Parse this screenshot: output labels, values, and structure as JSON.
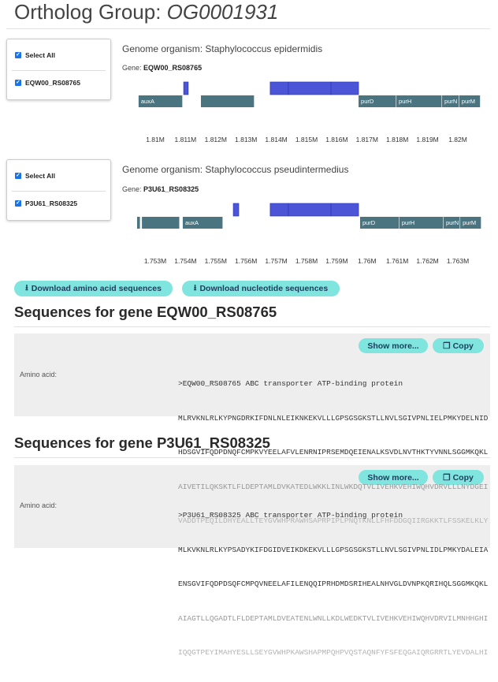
{
  "page": {
    "title_prefix": "Ortholog Group: ",
    "title_id": "OG0001931"
  },
  "colors": {
    "gene_track": "#4a7580",
    "target_gene": "#4b55d6",
    "button": "#7fe5de"
  },
  "genomes": [
    {
      "select_all": "Select All",
      "gene_checkbox": "EQW00_RS08765",
      "organism": "Genome organism: Staphylococcus epidermidis",
      "gene_label": "Gene: ",
      "gene_id": "EQW00_RS08765",
      "tick_start_kb": 1810,
      "ticks": [
        "1.81M",
        "1.811M",
        "1.812M",
        "1.813M",
        "1.814M",
        "1.815M",
        "1.816M",
        "1.817M",
        "1.818M",
        "1.819M",
        "1.82M"
      ],
      "target_features": [
        [
          1810.94,
          1811.09
        ],
        [
          1813.8,
          1814.4
        ],
        [
          1814.4,
          1815.81
        ],
        [
          1815.81,
          1816.72
        ]
      ],
      "features": [
        {
          "label": "auxA",
          "start": 1809.45,
          "end": 1810.91
        },
        {
          "label": "",
          "start": 1811.51,
          "end": 1813.28
        },
        {
          "label": "purD",
          "start": 1816.72,
          "end": 1817.97
        },
        {
          "label": "purH",
          "start": 1817.97,
          "end": 1819.48
        },
        {
          "label": "purN",
          "start": 1819.48,
          "end": 1820.05
        },
        {
          "label": "purM",
          "start": 1820.05,
          "end": 1820.75
        }
      ]
    },
    {
      "select_all": "Select All",
      "gene_checkbox": "P3U61_RS08325",
      "organism": "Genome organism: Staphylococcus pseudintermedius",
      "gene_label": "Gene: ",
      "gene_id": "P3U61_RS08325",
      "tick_start_kb": 1753,
      "ticks": [
        "1.753M",
        "1.754M",
        "1.755M",
        "1.756M",
        "1.757M",
        "1.758M",
        "1.759M",
        "1.76M",
        "1.761M",
        "1.762M",
        "1.763M"
      ],
      "target_features": [
        [
          1755.58,
          1755.76
        ],
        [
          1756.8,
          1757.4
        ],
        [
          1757.4,
          1758.81
        ],
        [
          1758.81,
          1759.72
        ]
      ],
      "features": [
        {
          "label": "",
          "start": 1752.4,
          "end": 1752.51
        },
        {
          "label": "",
          "start": 1752.56,
          "end": 1753.81
        },
        {
          "label": "auxA",
          "start": 1753.91,
          "end": 1755.24
        },
        {
          "label": "purD",
          "start": 1759.77,
          "end": 1761.07
        },
        {
          "label": "purH",
          "start": 1761.07,
          "end": 1762.53
        },
        {
          "label": "purN",
          "start": 1762.53,
          "end": 1763.08
        },
        {
          "label": "purM",
          "start": 1763.08,
          "end": 1763.78
        }
      ]
    }
  ],
  "downloads": {
    "amino": "Download amino acid sequences",
    "nucleotide": "Download nucleotide sequences"
  },
  "sequences": [
    {
      "heading": "Sequences for gene EQW00_RS08765",
      "show_more": "Show more...",
      "copy": "Copy",
      "label": "Amino acid:",
      "lines": [
        ">EQW00_RS08765 ABC transporter ATP-binding protein",
        "MLRVKNLRLKYPNGDRKIFDNLNLEIKNKEKVLLLGPSGSGKSTLLNVLSGIVPNLIELPMKYDELNID",
        "HDSGVIFQDPDNQFCMPKVYEELAFVLENRNIPRSEMDQEIENALKSVDLNVTHKTYVNNLSGGMKQKL",
        "AIVETILQKSKTLFLDEPTAMLDVKATEDLWKKLINLWKDQTVLIVEHKVEHIWQHVDRVLLLNYDGEI",
        "VADDTPEQILDHYEALLTEYGVWHPRAWHSAPRPIPLPNQTKNLLFHFDDGQIIRGKKTLFSSKELKLY"
      ]
    },
    {
      "heading": "Sequences for gene P3U61_RS08325",
      "show_more": "Show more...",
      "copy": "Copy",
      "label": "Amino acid:",
      "lines": [
        ">P3U61_RS08325 ABC transporter ATP-binding protein",
        "MLKVKNLRLKYPSADYKIFDGIDVEIKDKEKVLLLGPSGSGKSTLLNVLSGIVPNLIDLPMKYDALEIA",
        "ENSGVIFQDPDSQFCMPQVNEELAFILENQQIPRHDMDSRIHEALNHVGLDVNPKQRIHQLSGGMKQKL",
        "AIAGTLLQGADTLFLDEPTAMLDVEATENLWNLLKDLWEDKTVLIVEHKVEHIWQHVDRVILMNHHGHI",
        "IQQGTPEYIMAHYESLLSEYGVWHPKAWSHAPMPQHPVQSTAQNFYFSFEQGAIQRGRRTLYEVDALHI"
      ]
    }
  ]
}
